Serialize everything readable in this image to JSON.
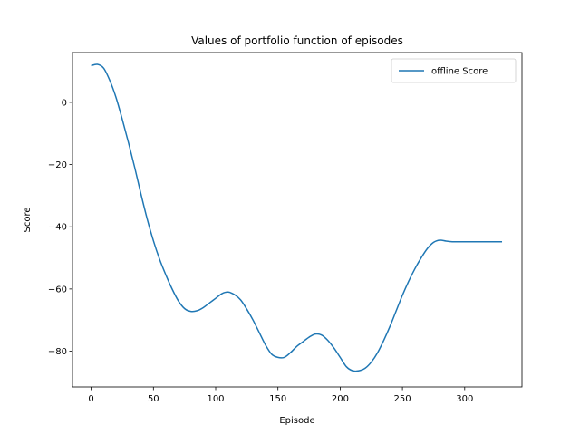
{
  "chart_data": {
    "type": "line",
    "title": "Values of portfolio function of episodes",
    "xlabel": "Episode",
    "ylabel": "Score",
    "xlim": [
      -15,
      346
    ],
    "ylim": [
      -91.5,
      16
    ],
    "xticks": [
      0,
      50,
      100,
      150,
      200,
      250,
      300
    ],
    "yticks": [
      0,
      -20,
      -40,
      -60,
      -80
    ],
    "grid": false,
    "legend_position": "top-right",
    "series": [
      {
        "name": "offline Score",
        "color": "#1f77b4",
        "x": [
          0,
          5,
          10,
          15,
          20,
          25,
          30,
          35,
          40,
          45,
          50,
          55,
          60,
          65,
          70,
          75,
          80,
          85,
          90,
          95,
          100,
          105,
          110,
          115,
          120,
          125,
          130,
          135,
          140,
          145,
          150,
          155,
          160,
          165,
          170,
          175,
          180,
          185,
          190,
          195,
          200,
          205,
          210,
          215,
          220,
          225,
          230,
          235,
          240,
          245,
          250,
          255,
          260,
          265,
          270,
          275,
          280,
          285,
          290,
          295,
          300,
          305,
          310,
          315,
          320,
          325,
          330
        ],
        "y": [
          11.8,
          12.2,
          11.0,
          7.0,
          1.5,
          -5.5,
          -13.0,
          -21.0,
          -29.5,
          -37.5,
          -44.5,
          -50.5,
          -55.5,
          -60.0,
          -63.8,
          -66.3,
          -67.2,
          -67.0,
          -66.0,
          -64.5,
          -63.0,
          -61.5,
          -61.0,
          -61.8,
          -63.5,
          -66.5,
          -70.0,
          -74.0,
          -78.0,
          -81.0,
          -82.0,
          -82.0,
          -80.5,
          -78.5,
          -77.0,
          -75.5,
          -74.5,
          -74.8,
          -76.5,
          -79.0,
          -82.0,
          -85.0,
          -86.3,
          -86.3,
          -85.5,
          -83.5,
          -80.5,
          -76.5,
          -72.0,
          -67.0,
          -62.0,
          -57.5,
          -53.5,
          -50.0,
          -47.0,
          -45.0,
          -44.3,
          -44.6,
          -44.8,
          -44.8,
          -44.8,
          -44.8,
          -44.8,
          -44.8,
          -44.8,
          -44.8,
          -44.8
        ]
      }
    ]
  }
}
